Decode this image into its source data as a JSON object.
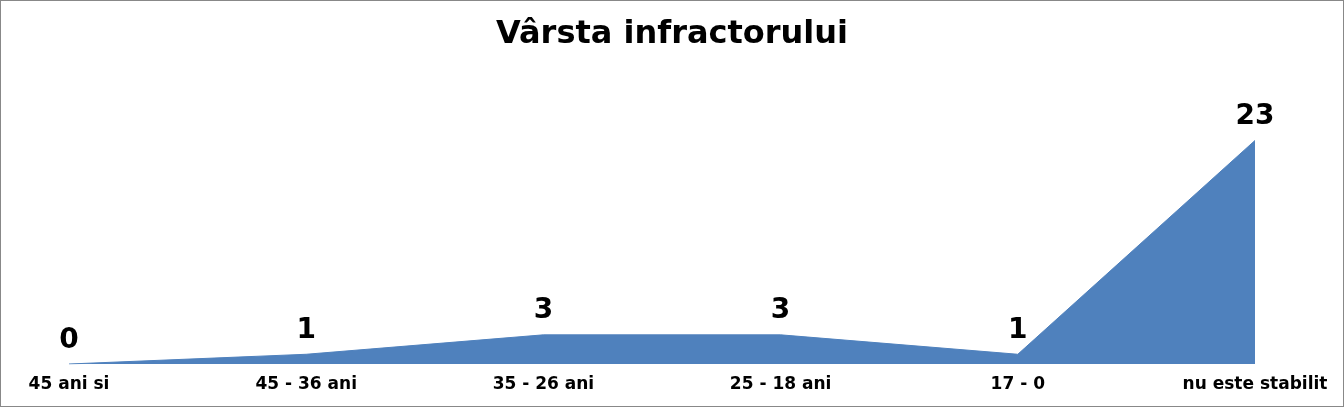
{
  "chart_data": {
    "type": "area",
    "title": "Vârsta infractorului",
    "categories": [
      "45 ani si",
      "45 - 36 ani",
      "35 - 26 ani",
      "25 - 18 ani",
      "17 - 0",
      "nu este stabilit"
    ],
    "series": [
      {
        "color": "#4f81bd",
        "values": [
          0,
          1,
          3,
          3,
          1,
          23
        ]
      }
    ],
    "data_labels": true
  }
}
